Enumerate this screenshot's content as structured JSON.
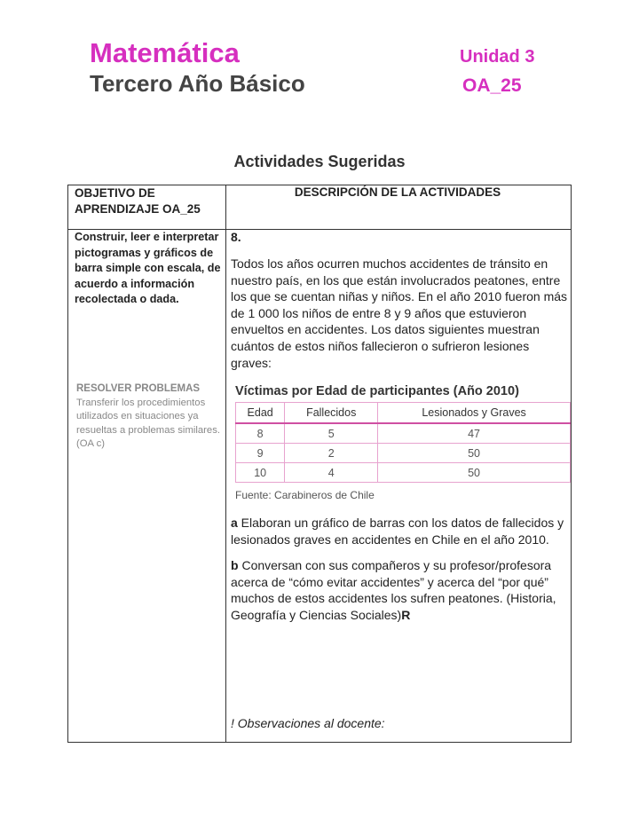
{
  "header": {
    "subject": "Matemática",
    "grade": "Tercero Año Básico",
    "unit": "Unidad 3",
    "oa": "OA_25"
  },
  "title": "Actividades Sugeridas",
  "table": {
    "col1_header": "OBJETIVO DE APRENDIZAJE OA_25",
    "col2_header": "DESCRIPCIÓN DE LA ACTIVIDADES",
    "objective": "Construir, leer e interpretar pictogramas y gráficos de barra simple con escala, de acuerdo a información recolectada o dada.",
    "skill_title": "RESOLVER PROBLEMAS",
    "skill_text": "Transferir los procedimientos utilizados en situaciones ya resueltas a problemas similares. (OA c)",
    "activity_number": "8.",
    "intro": "Todos los años ocurren muchos accidentes de tránsito en nuestro país, en los que están involucrados peatones, entre los que se cuentan niñas y niños. En el año 2010 fueron más de 1 000 los niños de entre 8 y 9 años que estuvieron envueltos en accidentes. Los datos siguientes muestran cuántos de estos niños fallecieron o sufrieron lesiones graves:",
    "data_table": {
      "caption": "Víctimas por Edad de participantes (Año 2010)",
      "headers": [
        "Edad",
        "Fallecidos",
        "Lesionados y Graves"
      ],
      "rows": [
        [
          "8",
          "5",
          "47"
        ],
        [
          "9",
          "2",
          "50"
        ],
        [
          "10",
          "4",
          "50"
        ]
      ],
      "source": "Fuente: Carabineros de Chile"
    },
    "item_a_label": "a",
    "item_a": " Elaboran un gráfico de barras con los datos de fallecidos y lesionados graves en accidentes en Chile en el año 2010.",
    "item_b_label": "b",
    "item_b": " Conversan con sus compañeros y su profesor/profesora acerca de “cómo evitar accidentes” y acerca del “por qué” muchos de estos accidentes los sufren peatones. (Historia, Geografía y Ciencias Sociales)",
    "item_b_end": "R",
    "observations": "! Observaciones al docente:"
  },
  "colors": {
    "accent": "#d62fbf",
    "table_border": "#e7a3cf"
  }
}
